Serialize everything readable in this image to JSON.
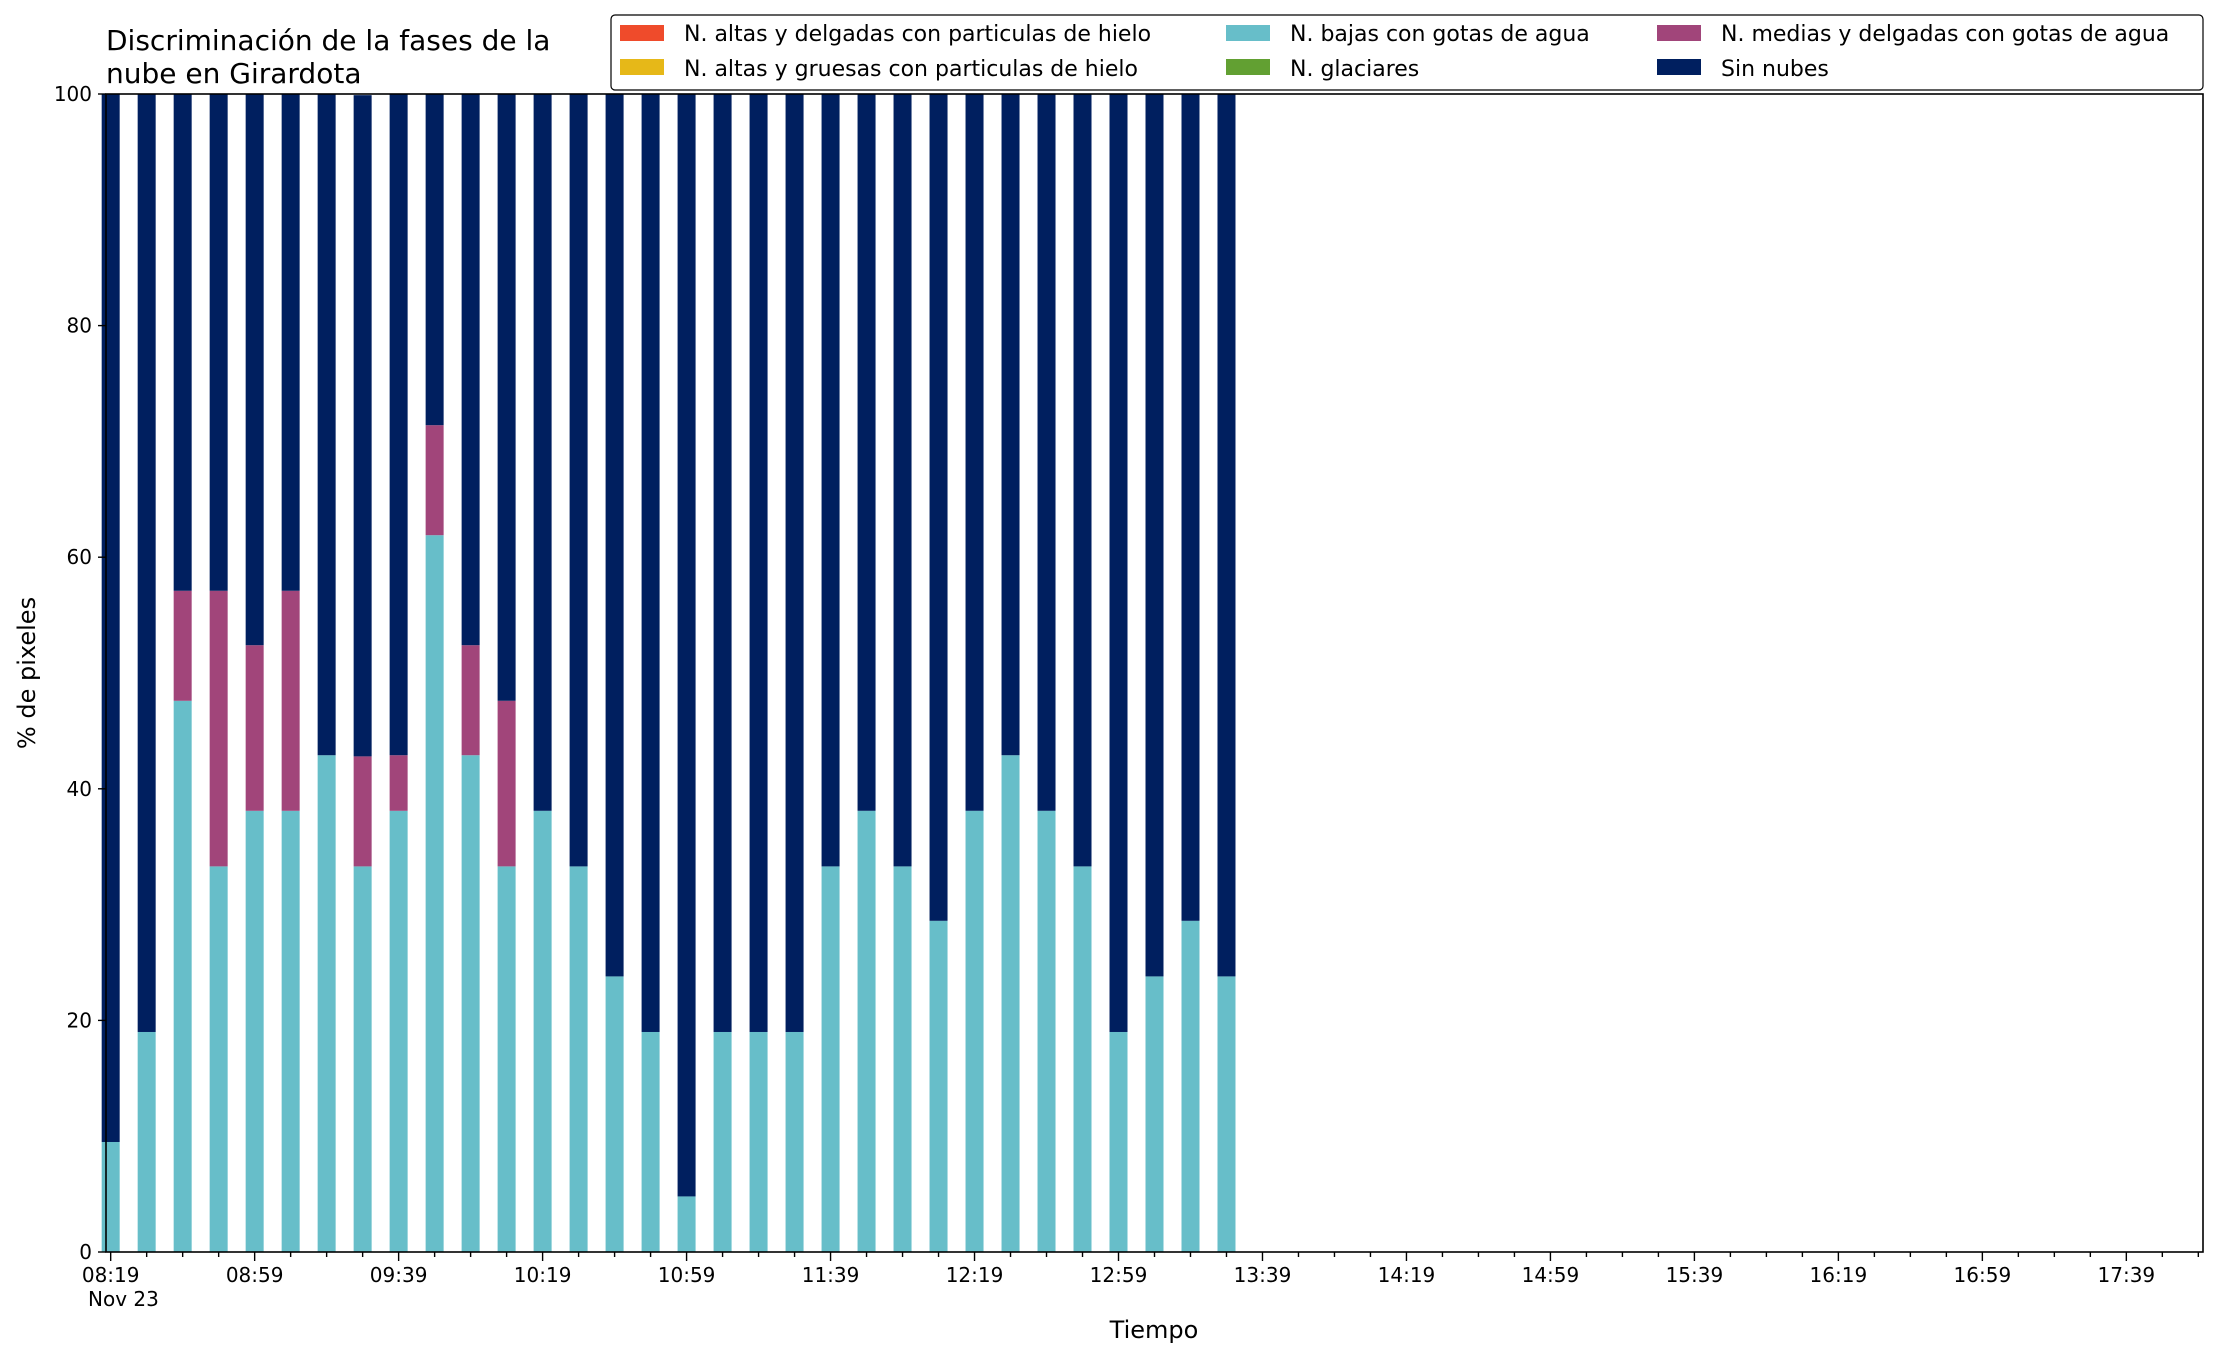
{
  "chart_data": {
    "type": "bar",
    "stacked": true,
    "title": [
      "Discriminación de la fases de la",
      "nube en Girardota"
    ],
    "xlabel": "Tiempo",
    "ylabel": "% de pixeles",
    "ylim": [
      0,
      100
    ],
    "yticks": [
      0,
      20,
      40,
      60,
      80,
      100
    ],
    "x_start_date_label": "Nov 23",
    "x_major_ticks": [
      "08:19",
      "08:59",
      "09:39",
      "10:19",
      "10:59",
      "11:39",
      "12:19",
      "12:59",
      "13:39",
      "14:19",
      "14:59",
      "15:39",
      "16:19",
      "16:59",
      "17:39"
    ],
    "x_range": [
      "08:19",
      "17:59"
    ],
    "bar_interval_minutes": 10,
    "categories": [
      "08:19",
      "08:29",
      "08:39",
      "08:49",
      "08:59",
      "09:09",
      "09:19",
      "09:29",
      "09:39",
      "09:49",
      "09:59",
      "10:09",
      "10:19",
      "10:29",
      "10:39",
      "10:49",
      "10:59",
      "11:09",
      "11:19",
      "11:29",
      "11:39",
      "11:49",
      "11:59",
      "12:09",
      "12:19",
      "12:29",
      "12:39",
      "12:49",
      "12:59",
      "13:09",
      "13:19",
      "13:29"
    ],
    "series": [
      {
        "name": "N. altas y delgadas con particulas de hielo",
        "color": "#ef4b2b",
        "values": [
          0,
          0,
          0,
          0,
          0,
          0,
          0,
          0,
          0,
          0,
          0,
          0,
          0,
          0,
          0,
          0,
          0,
          0,
          0,
          0,
          0,
          0,
          0,
          0,
          0,
          0,
          0,
          0,
          0,
          0,
          0,
          0
        ]
      },
      {
        "name": "N. altas y gruesas con particulas de hielo",
        "color": "#e6b818",
        "values": [
          0,
          0,
          0,
          0,
          0,
          0,
          0,
          0,
          0,
          0,
          0,
          0,
          0,
          0,
          0,
          0,
          0,
          0,
          0,
          0,
          0,
          0,
          0,
          0,
          0,
          0,
          0,
          0,
          0,
          0,
          0,
          0
        ]
      },
      {
        "name": "N. bajas con gotas de agua",
        "color": "#67bec9",
        "values": [
          9.5,
          19.0,
          47.6,
          33.3,
          38.1,
          38.1,
          42.9,
          33.3,
          38.1,
          61.9,
          42.9,
          33.3,
          38.1,
          33.3,
          23.8,
          19.0,
          4.8,
          19.0,
          19.0,
          19.0,
          33.3,
          38.1,
          33.3,
          28.6,
          38.1,
          42.9,
          38.1,
          33.3,
          19.0,
          23.8,
          28.6,
          23.8
        ]
      },
      {
        "name": "N. glaciares",
        "color": "#62a032",
        "values": [
          0,
          0,
          0,
          0,
          0,
          0,
          0,
          0,
          0,
          0,
          0,
          0,
          0,
          0,
          0,
          0,
          0,
          0,
          0,
          0,
          0,
          0,
          0,
          0,
          0,
          0,
          0,
          0,
          0,
          0,
          0,
          0
        ]
      },
      {
        "name": "N. medias y delgadas con gotas de agua",
        "color": "#a1457a",
        "values": [
          0,
          0,
          9.5,
          23.8,
          14.3,
          19.0,
          0,
          9.5,
          4.8,
          9.5,
          9.5,
          14.3,
          0,
          0,
          0,
          0,
          0,
          0,
          0,
          0,
          0,
          0,
          0,
          0,
          0,
          0,
          0,
          0,
          0,
          0,
          0,
          0
        ]
      },
      {
        "name": "Sin nubes",
        "color": "#001f5f",
        "values": [
          90.5,
          81.0,
          42.9,
          42.9,
          47.6,
          42.9,
          57.1,
          57.1,
          57.1,
          28.6,
          47.6,
          52.4,
          61.9,
          66.7,
          76.2,
          81.0,
          95.2,
          81.0,
          81.0,
          81.0,
          66.7,
          61.9,
          66.7,
          71.4,
          61.9,
          57.1,
          61.9,
          66.7,
          81.0,
          76.2,
          71.4,
          76.2
        ]
      }
    ],
    "legend": {
      "placement": "top-right",
      "columns": 3
    }
  }
}
